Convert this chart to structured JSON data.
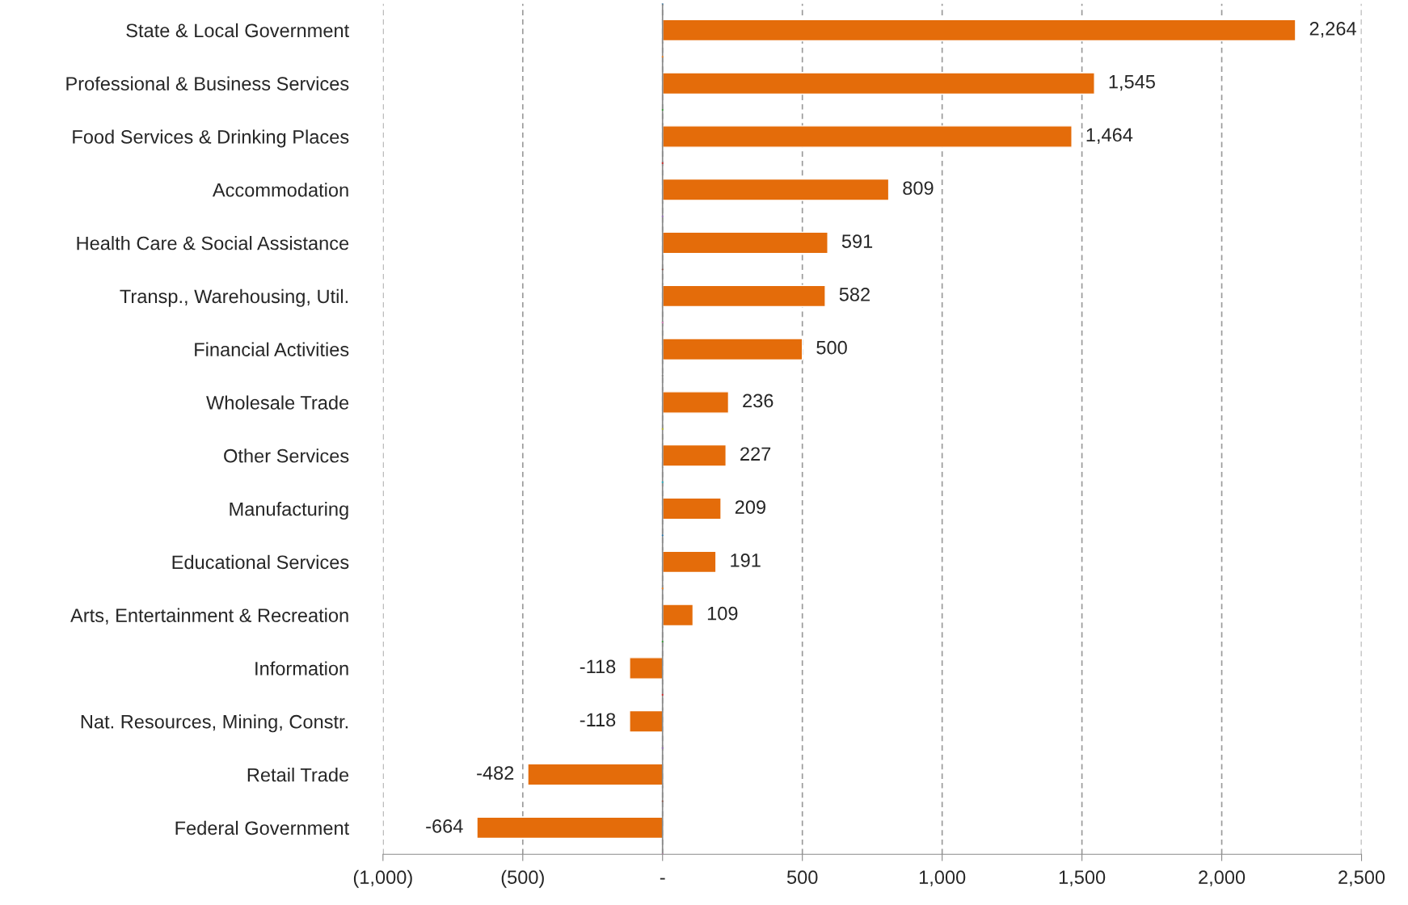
{
  "chart_data": {
    "type": "bar",
    "orientation": "horizontal",
    "categories": [
      "State & Local Government",
      "Professional & Business Services",
      "Food Services & Drinking Places",
      "Accommodation",
      "Health Care & Social Assistance",
      "Transp., Warehousing, Util.",
      "Financial Activities",
      "Wholesale Trade",
      "Other Services",
      "Manufacturing",
      "Educational Services",
      "Arts, Entertainment & Recreation",
      "Information",
      "Nat. Resources, Mining, Constr.",
      "Retail Trade",
      "Federal Government"
    ],
    "values": [
      2264,
      1545,
      1464,
      809,
      591,
      582,
      500,
      236,
      227,
      209,
      191,
      109,
      -118,
      -118,
      -482,
      -664
    ],
    "value_labels": [
      "2,264",
      "1,545",
      "1,464",
      "809",
      "591",
      "582",
      "500",
      "236",
      "227",
      "209",
      "191",
      "109",
      "-118",
      "-118",
      "-482",
      "-664"
    ],
    "color": "#e46c0a",
    "xlim": [
      -1000,
      2500
    ],
    "xticks": [
      {
        "value": -1000,
        "label": "(1,000)"
      },
      {
        "value": -500,
        "label": "(500)"
      },
      {
        "value": 0,
        "label": "-"
      },
      {
        "value": 500,
        "label": "500"
      },
      {
        "value": 1000,
        "label": "1,000"
      },
      {
        "value": 1500,
        "label": "1,500"
      },
      {
        "value": 2000,
        "label": "2,000"
      },
      {
        "value": 2500,
        "label": "2,500"
      }
    ],
    "grid": "x",
    "legend": false
  }
}
